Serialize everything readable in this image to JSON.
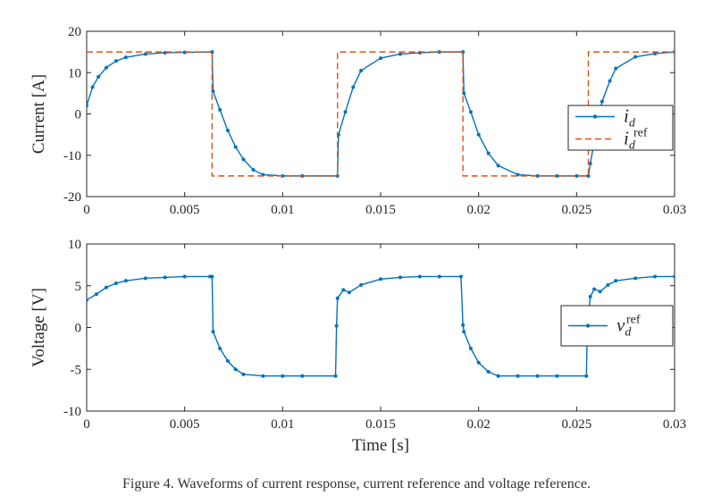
{
  "caption": "Figure 4. Waveforms of current response, current reference and voltage reference.",
  "colors": {
    "measured": "#0072BD",
    "reference": "#D95319",
    "axes": "#262626"
  },
  "chart_data": [
    {
      "type": "line",
      "ylabel": "Current [A]",
      "xlabel": "",
      "xlim": [
        0,
        0.03
      ],
      "ylim": [
        -20,
        20
      ],
      "xticks": [
        0,
        0.005,
        0.01,
        0.015,
        0.02,
        0.025,
        0.03
      ],
      "xtick_labels": [
        "0",
        "0.005",
        "0.01",
        "0.015",
        "0.02",
        "0.025",
        "0.03"
      ],
      "yticks": [
        -20,
        -10,
        0,
        10,
        20
      ],
      "ytick_labels": [
        "-20",
        "-10",
        "0",
        "10",
        "20"
      ],
      "legend_position": "right",
      "series": [
        {
          "name": "i_d",
          "legend": {
            "main": "i",
            "sub": "d",
            "sup": ""
          },
          "style": "solid-dots",
          "x": [
            0,
            0.0003,
            0.0006,
            0.001,
            0.0015,
            0.002,
            0.003,
            0.004,
            0.005,
            0.0064,
            0.00645,
            0.0068,
            0.0072,
            0.0076,
            0.008,
            0.0085,
            0.009,
            0.01,
            0.011,
            0.0128,
            0.01285,
            0.0132,
            0.0136,
            0.014,
            0.015,
            0.016,
            0.017,
            0.018,
            0.0192,
            0.01925,
            0.0196,
            0.02,
            0.0205,
            0.021,
            0.022,
            0.023,
            0.024,
            0.025,
            0.0256,
            0.0257,
            0.026,
            0.0263,
            0.0267,
            0.027,
            0.028,
            0.029,
            0.03
          ],
          "y": [
            2,
            6.5,
            9,
            11.2,
            12.8,
            13.7,
            14.5,
            14.8,
            14.9,
            15,
            5.5,
            1,
            -4,
            -8,
            -11,
            -13.5,
            -14.7,
            -15,
            -15,
            -15,
            -5,
            0.5,
            6.5,
            10.5,
            13.5,
            14.5,
            14.8,
            15,
            15,
            5,
            0.5,
            -5,
            -9.5,
            -12.5,
            -14.7,
            -15,
            -15,
            -15,
            -15,
            -12,
            -4,
            3,
            8,
            11,
            13.8,
            14.6,
            15
          ]
        },
        {
          "name": "i_d^ref",
          "legend": {
            "main": "i",
            "sub": "d",
            "sup": "ref"
          },
          "style": "dashed",
          "x": [
            0,
            0.0064,
            0.0064,
            0.0128,
            0.0128,
            0.0192,
            0.0192,
            0.0256,
            0.0256,
            0.03
          ],
          "y": [
            15,
            15,
            -15,
            -15,
            15,
            15,
            -15,
            -15,
            15,
            15
          ]
        }
      ]
    },
    {
      "type": "line",
      "ylabel": "Voltage [V]",
      "xlabel": "Time [s]",
      "xlim": [
        0,
        0.03
      ],
      "ylim": [
        -10,
        10
      ],
      "xticks": [
        0,
        0.005,
        0.01,
        0.015,
        0.02,
        0.025,
        0.03
      ],
      "xtick_labels": [
        "0",
        "0.005",
        "0.01",
        "0.015",
        "0.02",
        "0.025",
        "0.03"
      ],
      "yticks": [
        -10,
        -5,
        0,
        5,
        10
      ],
      "ytick_labels": [
        "-10",
        "-5",
        "0",
        "5",
        "10"
      ],
      "legend_position": "right",
      "series": [
        {
          "name": "v_d^ref",
          "legend": {
            "main": "v",
            "sub": "d",
            "sup": "ref"
          },
          "style": "solid-dots",
          "x": [
            0,
            0.0005,
            0.001,
            0.0015,
            0.002,
            0.003,
            0.004,
            0.005,
            0.0063,
            0.0064,
            0.00645,
            0.0068,
            0.0072,
            0.0076,
            0.008,
            0.009,
            0.01,
            0.011,
            0.0127,
            0.01275,
            0.0128,
            0.0131,
            0.0134,
            0.014,
            0.015,
            0.016,
            0.017,
            0.018,
            0.0191,
            0.0192,
            0.01925,
            0.0196,
            0.02,
            0.0205,
            0.021,
            0.022,
            0.023,
            0.024,
            0.0255,
            0.02555,
            0.0257,
            0.0259,
            0.0262,
            0.0266,
            0.027,
            0.028,
            0.029,
            0.03
          ],
          "y": [
            3.3,
            4,
            4.8,
            5.3,
            5.6,
            5.9,
            6,
            6.1,
            6.1,
            6.1,
            -0.5,
            -2.5,
            -4,
            -5,
            -5.6,
            -5.8,
            -5.8,
            -5.8,
            -5.8,
            0.2,
            3.5,
            4.5,
            4.2,
            5.1,
            5.8,
            6,
            6.1,
            6.1,
            6.1,
            0.3,
            -0.5,
            -2.5,
            -4.2,
            -5.3,
            -5.8,
            -5.8,
            -5.8,
            -5.8,
            -5.8,
            0.5,
            3.7,
            4.6,
            4.3,
            5.1,
            5.6,
            5.9,
            6.1,
            6.1
          ]
        }
      ]
    }
  ]
}
